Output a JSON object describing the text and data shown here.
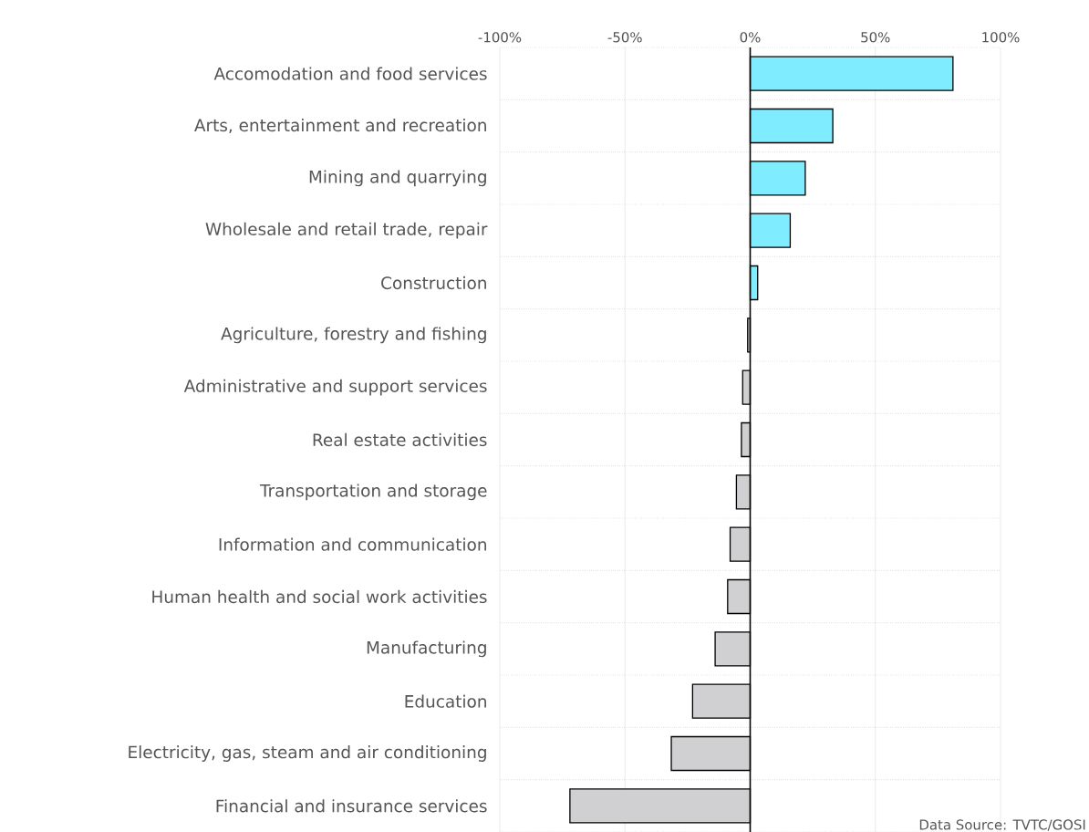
{
  "chart_data": {
    "type": "bar",
    "orientation": "horizontal",
    "categories": [
      "Accomodation and food services",
      "Arts, entertainment and recreation",
      "Mining and quarrying",
      "Wholesale and retail trade, repair",
      "Construction",
      "Agriculture, forestry and fishing",
      "Administrative and support services",
      "Real estate activities",
      "Transportation and storage",
      "Information and communication",
      "Human health and social work activities",
      "Manufacturing",
      "Education",
      "Electricity, gas, steam and air conditioning",
      "Financial and insurance services"
    ],
    "values": [
      81,
      33,
      22,
      16,
      3,
      -1,
      -3,
      -3.5,
      -5.5,
      -8,
      -9,
      -14,
      -23,
      -31.5,
      -72
    ],
    "colors": [
      "#7fecff",
      "#7fecff",
      "#7fecff",
      "#7fecff",
      "#7fecff",
      "#d0cfd1",
      "#d0cfd1",
      "#d0cfd1",
      "#d0cfd1",
      "#d0cfd1",
      "#d0cfd1",
      "#d0cfd1",
      "#d0cfd1",
      "#d0cfd1",
      "#d0cfd1"
    ],
    "xlim": [
      -100,
      100
    ],
    "xticks": [
      {
        "value": -100,
        "label": "-100%"
      },
      {
        "value": -50,
        "label": "-50%"
      },
      {
        "value": 0,
        "label": "0%"
      },
      {
        "value": 50,
        "label": "50%"
      },
      {
        "value": 100,
        "label": "100%"
      }
    ],
    "grid": true,
    "annotations": [
      "Data Source: TVTC/GOSI"
    ]
  }
}
